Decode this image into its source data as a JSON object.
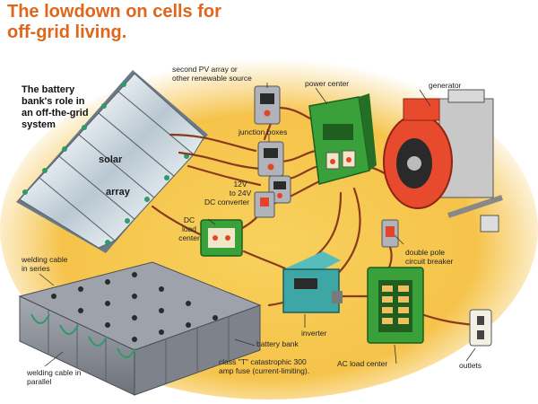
{
  "title": {
    "line1": "The lowdown on cells for",
    "line2": "off-grid living."
  },
  "role_caption": {
    "line1": "The battery",
    "line2": "bank's role in",
    "line3": "an off-the-grid",
    "line4": "system"
  },
  "solar_array": {
    "word1": "solar",
    "word2": "array"
  },
  "labels": {
    "second_pv_line1": "second PV array or",
    "second_pv_line2": "other renewable source",
    "power_center": "power center",
    "generator": "generator",
    "junction_boxes": "junction boxes",
    "converter_line1": "12V",
    "converter_line2": "to 24V",
    "converter_line3": "DC converter",
    "dc_load_line1": "DC",
    "dc_load_line2": "load",
    "dc_load_line3": "center",
    "welding_series_line1": "welding cable",
    "welding_series_line2": "in series",
    "double_pole_line1": "double pole",
    "double_pole_line2": "circuit breaker",
    "inverter": "inverter",
    "battery_bank": "battery bank",
    "fuse_line1": "class \"T\" catastrophic 300",
    "fuse_line2": "amp fuse (current-limiting).",
    "welding_parallel_line1": "welding cable in",
    "welding_parallel_line2": "parallel",
    "ac_load_center": "AC load center",
    "outlets": "outlets"
  },
  "colors": {
    "title": "#e0661b",
    "background_glow": "#f5c040",
    "cable": "#8a3a1c",
    "power_center": "#3aa03a",
    "generator": "#e84a2e",
    "inverter": "#3fa6a6",
    "battery": "#8a8e96",
    "solar_panel": "#c8d4dc"
  }
}
